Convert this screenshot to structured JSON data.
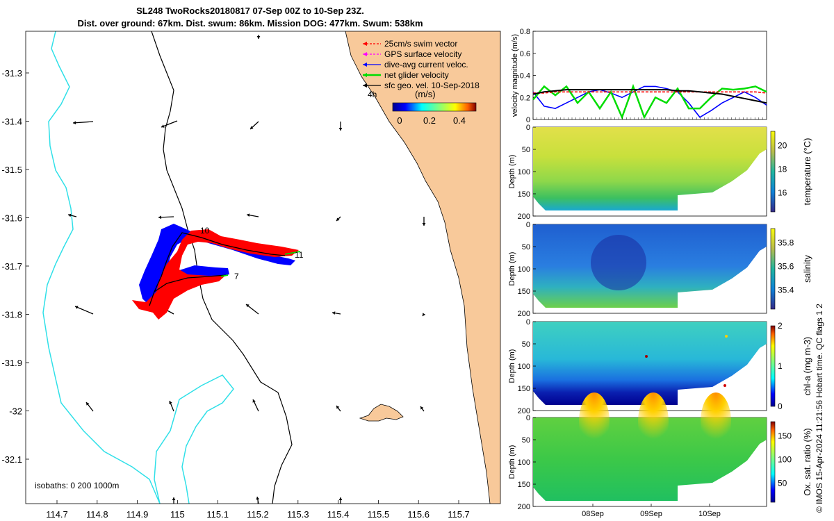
{
  "title": {
    "line1": "SL248 TwoRocks20180817 07-Sep 00Z to 10-Sep 23Z.",
    "line2": "Dist. over ground: 67km. Dist. swum: 86km. Mission DOG: 477km. Swum: 538km"
  },
  "map": {
    "x_ticks": [
      "114.7",
      "114.8",
      "114.9",
      "115",
      "115.1",
      "115.2",
      "115.3",
      "115.4",
      "115.5",
      "115.6",
      "115.7"
    ],
    "y_ticks": [
      "-31.3",
      "-31.4",
      "-31.5",
      "-31.6",
      "-31.7",
      "-31.8",
      "-31.9",
      "-32",
      "-32.1"
    ],
    "legend": [
      {
        "label": "25cm/s swim vector",
        "color": "#ff0000"
      },
      {
        "label": "GPS surface velocity",
        "color": "#ff00ff"
      },
      {
        "label": "dive-avg current veloc.",
        "color": "#0000ff"
      },
      {
        "label": "net glider velocity",
        "color": "#00dd00"
      },
      {
        "label": "sfc geo. vel. 10-Sep-2018",
        "color": "#000000"
      }
    ],
    "colorbar_unit": "(m/s)",
    "colorbar_ticks": [
      "0",
      "0.2",
      "0.4"
    ],
    "track_labels": [
      "10",
      "11",
      "7"
    ],
    "time_marker": "4h",
    "isobaths_label": "isobaths: 0   200  1000m"
  },
  "velocity_panel": {
    "ylabel": "velocity magnitude (m/s)",
    "y_ticks": [
      "0",
      "0.2",
      "0.4",
      "0.6",
      "0.8"
    ],
    "ylim": [
      0,
      0.8
    ],
    "series": [
      {
        "name": "dive-avg current",
        "color": "#0000ff",
        "values": [
          0.25,
          0.12,
          0.1,
          0.15,
          0.2,
          0.25,
          0.27,
          0.24,
          0.2,
          0.25,
          0.3,
          0.3,
          0.28,
          0.25,
          0.15,
          0.02,
          0.08,
          0.15,
          0.2,
          0.25,
          0.2,
          0.13
        ]
      },
      {
        "name": "net glider velocity",
        "color": "#00dd00",
        "values": [
          0.18,
          0.3,
          0.22,
          0.3,
          0.15,
          0.25,
          0.1,
          0.25,
          0.02,
          0.3,
          0.02,
          0.2,
          0.15,
          0.28,
          0.1,
          0.1,
          0.2,
          0.28,
          0.27,
          0.28,
          0.3,
          0.25
        ]
      },
      {
        "name": "swim vector",
        "color": "#ff0000",
        "values": [
          0.24,
          0.24,
          0.25,
          0.25,
          0.25,
          0.25,
          0.25,
          0.25,
          0.25,
          0.25,
          0.25,
          0.25,
          0.25,
          0.25,
          0.25,
          0.25,
          0.25,
          0.25,
          0.25,
          0.25,
          0.25,
          0.24
        ]
      },
      {
        "name": "sfc geo. vel.",
        "color": "#000000",
        "values": [
          0.23,
          0.25,
          0.26,
          0.27,
          0.27,
          0.27,
          0.27,
          0.27,
          0.27,
          0.27,
          0.27,
          0.27,
          0.27,
          0.26,
          0.26,
          0.25,
          0.24,
          0.23,
          0.21,
          0.19,
          0.17,
          0.15
        ]
      }
    ]
  },
  "depth_panels": [
    {
      "key": "temperature",
      "label": "temperature (°C)",
      "ticks": [
        "16",
        "18",
        "20"
      ]
    },
    {
      "key": "salinity",
      "label": "salinity",
      "ticks": [
        "35.4",
        "35.6",
        "35.8"
      ]
    },
    {
      "key": "chl",
      "label": "chl-a (mg m-3)",
      "ticks": [
        "0",
        "1",
        "2"
      ]
    },
    {
      "key": "oxy",
      "label": "Ox. sat. ratio (%)",
      "ticks": [
        "50",
        "100",
        "150"
      ]
    }
  ],
  "depth_axis": {
    "label": "Depth (m)",
    "ticks": [
      "0",
      "50",
      "100",
      "150",
      "200"
    ]
  },
  "time_axis": {
    "ticks": [
      "08Sep",
      "09Sep",
      "10Sep"
    ]
  },
  "qc_label": "QC flags 1  2",
  "credit": "© IMOS 15-Apr-2024 11:21:56 Hobart time.",
  "colors": {
    "land": "#f8c99a",
    "isobath200": "#000000",
    "isobath1000": "#30e0e8"
  }
}
